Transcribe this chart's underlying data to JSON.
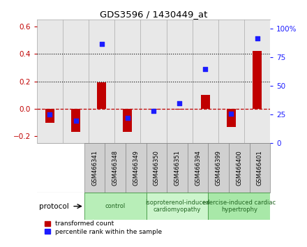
{
  "title": "GDS3596 / 1430449_at",
  "samples": [
    "GSM466341",
    "GSM466348",
    "GSM466349",
    "GSM466350",
    "GSM466351",
    "GSM466394",
    "GSM466399",
    "GSM466400",
    "GSM466401"
  ],
  "transformed_count": [
    -0.1,
    -0.165,
    0.195,
    -0.165,
    -0.005,
    -0.005,
    0.105,
    -0.13,
    0.425
  ],
  "percentile_rank": [
    25,
    20,
    87,
    22,
    28,
    35,
    65,
    26,
    92
  ],
  "groups": [
    {
      "label": "control",
      "start": 0,
      "end": 3
    },
    {
      "label": "isoproterenol-induced\ncardiomyopathy",
      "start": 3,
      "end": 6
    },
    {
      "label": "exercise-induced cardiac\nhypertrophy",
      "start": 6,
      "end": 9
    }
  ],
  "left_ylim": [
    -0.25,
    0.65
  ],
  "right_ylim": [
    0,
    108
  ],
  "left_yticks": [
    -0.2,
    0.0,
    0.2,
    0.4,
    0.6
  ],
  "right_yticks": [
    0,
    25,
    50,
    75,
    100
  ],
  "bar_width": 0.35,
  "red_color": "#c00000",
  "blue_color": "#1c1cff",
  "sample_box_color": "#d0d0d0",
  "sample_box_edge": "#888888",
  "protocol_colors": [
    "#b8eeb8",
    "#ccf5cc",
    "#a8e8a8"
  ],
  "protocol_edge": "#449944",
  "protocol_text_color": "#226622",
  "bg_color": "#ffffff",
  "protocol_label": "protocol",
  "legend_red": "transformed count",
  "legend_blue": "percentile rank within the sample"
}
